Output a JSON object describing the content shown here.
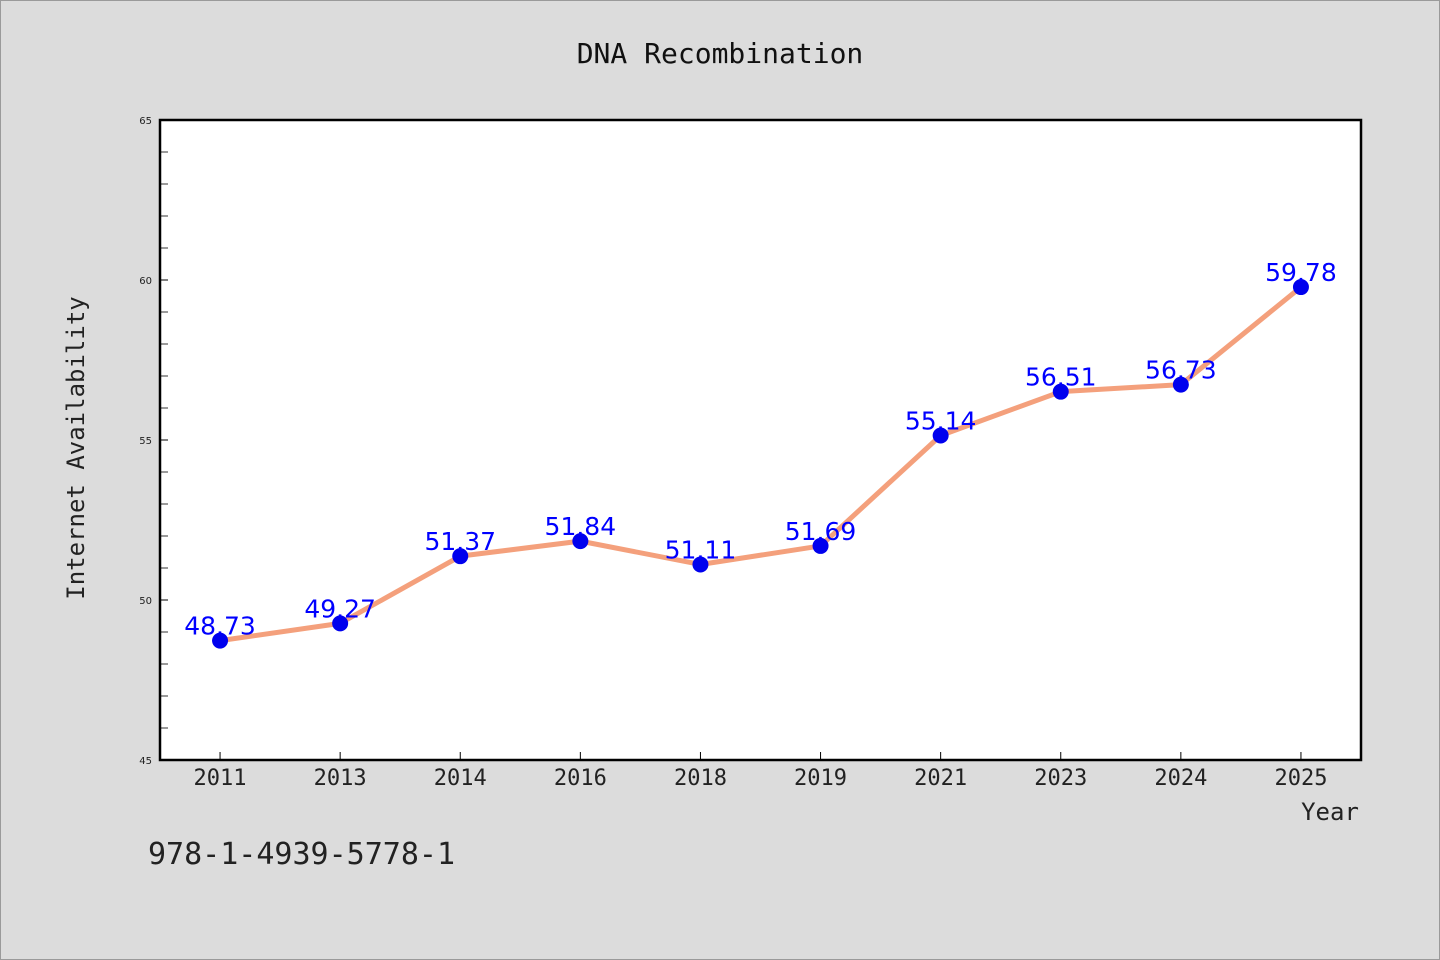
{
  "chart_data": {
    "type": "line",
    "title": "DNA Recombination",
    "xlabel": "Year",
    "ylabel": "Internet Availability",
    "categories": [
      "2011",
      "2013",
      "2014",
      "2016",
      "2018",
      "2019",
      "2021",
      "2023",
      "2024",
      "2025"
    ],
    "series": [
      {
        "values": [
          48.73,
          49.27,
          51.37,
          51.84,
          51.11,
          51.69,
          55.14,
          56.51,
          56.73,
          59.78
        ],
        "labels": [
          "48.73",
          "49.27",
          "51.37",
          "51.84",
          "51.11",
          "51.69",
          "55.14",
          "56.51",
          "56.73",
          "59.78"
        ]
      }
    ],
    "ylim": [
      45,
      65
    ],
    "yticks": [
      45,
      50,
      55,
      60,
      65
    ],
    "ytick_labels": [
      "45",
      "50",
      "55",
      "60",
      "65"
    ],
    "grid": false,
    "legend": "none",
    "colors": {
      "line": "#f4a07c",
      "marker": "#0000ee",
      "data_label": "#0000ff",
      "plot_background": "#ffffff",
      "figure_background": "#dcdcdc"
    }
  },
  "footer_text": "978-1-4939-5778-1"
}
